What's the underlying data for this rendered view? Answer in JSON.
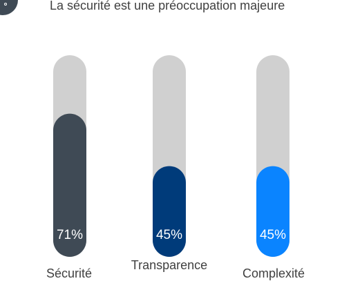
{
  "header": {
    "icon": "shield-icon",
    "text": "La sécurité est une préoccupation majeure"
  },
  "chart_data": {
    "type": "bar",
    "categories": [
      "Sécurité",
      "Transparence",
      "Complexité"
    ],
    "values": [
      71,
      45,
      45
    ],
    "value_labels": [
      "71%",
      "45%",
      "45%"
    ],
    "ylim": [
      0,
      100
    ],
    "colors": [
      "#3f4a55",
      "#003b7a",
      "#0a84ff"
    ],
    "track_color": "#d0d0d0",
    "grid": false
  }
}
